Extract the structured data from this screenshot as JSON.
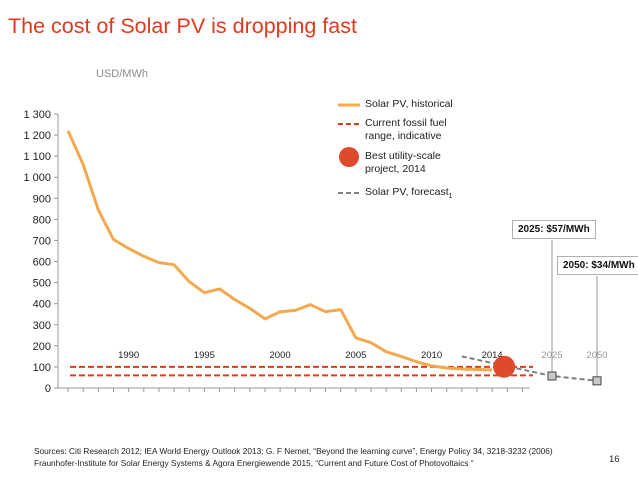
{
  "slide": {
    "title": "The cost of Solar PV is dropping fast",
    "unit_label": "USD/MWh",
    "page_number": "16",
    "sources": [
      "Sources: Citi Research 2012; IEA World Energy Outlook 2013; G. F Nemet, “Beyond the learning curve”, Energy Policy 34, 3218-3232 (2006)",
      "Fraunhofer-Institute for Solar Energy Systems & Agora Energiewende 2015, “Current and Future Cost of Photovoltaics “"
    ]
  },
  "legend": {
    "historical": "Solar PV, historical",
    "fossil_line1": "Current fossil fuel",
    "fossil_line2": "range, indicative",
    "best_line1": "Best utility-scale",
    "best_line2": "project, 2014",
    "forecast": "Solar PV, forecast",
    "forecast_note": "1"
  },
  "callouts": {
    "c2025": "2025: $57/MWh",
    "c2050": "2050: $34/MWh"
  },
  "colors": {
    "historical": "#f4a94f",
    "fossil": "#e03a1e",
    "best_project": "#e04a2c",
    "forecast": "#7f7f7f",
    "title": "#e03a1e"
  },
  "chart_data": {
    "type": "line",
    "y_ticks": [
      "0",
      "100",
      "200",
      "300",
      "400",
      "500",
      "600",
      "700",
      "800",
      "900",
      "1 000",
      "1 100",
      "1 200",
      "1 300"
    ],
    "ylim": [
      0,
      1300
    ],
    "x_tick_labels": [
      {
        "label": "1990",
        "year": 1990
      },
      {
        "label": "1995",
        "year": 1995
      },
      {
        "label": "2000",
        "year": 2000
      },
      {
        "label": "2005",
        "year": 2005
      },
      {
        "label": "2010",
        "year": 2010
      },
      {
        "label": "2014",
        "year": 2014
      },
      {
        "label": "2025",
        "year": 2025,
        "muted": true
      },
      {
        "label": "2050",
        "year": 2050,
        "muted": true
      }
    ],
    "series": [
      {
        "name": "Solar PV, historical",
        "style": "solid",
        "x": [
          1986,
          1987,
          1988,
          1989,
          1990,
          1991,
          1992,
          1993,
          1994,
          1995,
          1996,
          1997,
          1998,
          1999,
          2000,
          2001,
          2002,
          2003,
          2004,
          2005,
          2006,
          2007,
          2008,
          2009,
          2010,
          2011,
          2012,
          2013,
          2014
        ],
        "y": [
          1220,
          1060,
          845,
          705,
          662,
          625,
          595,
          585,
          505,
          452,
          470,
          420,
          378,
          328,
          362,
          368,
          395,
          362,
          372,
          238,
          215,
          172,
          150,
          125,
          105,
          95,
          90,
          88,
          86
        ]
      },
      {
        "name": "Solar PV, forecast",
        "style": "dashed",
        "x": [
          2012,
          2025,
          2050
        ],
        "y": [
          150,
          57,
          34
        ]
      },
      {
        "name": "Current fossil fuel range, indicative",
        "style": "dashed-band",
        "low": 60,
        "high": 100
      },
      {
        "name": "Best utility-scale project, 2014",
        "style": "marker",
        "x": 2014,
        "y": 82
      }
    ]
  }
}
